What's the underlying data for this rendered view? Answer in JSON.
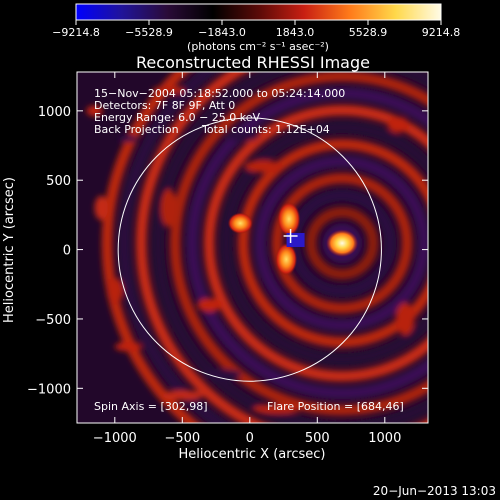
{
  "colorbar": {
    "ticks": [
      "−9214.8",
      "−5528.9",
      "−1843.0",
      "1843.0",
      "5528.9",
      "9214.8"
    ],
    "units": "(photons cm⁻² s⁻¹ asec⁻²)",
    "gradient": [
      "#0000ff",
      "#20139a",
      "#2a0b38",
      "#000000",
      "#5a0a08",
      "#c81f12",
      "#ff7a1a",
      "#ffd84a",
      "#fffbe6"
    ]
  },
  "annotations": {
    "time": "15−Nov−2004 05:18:52.000 to 05:24:14.000",
    "detectors": "Detectors: 7F 8F 9F, Att 0",
    "energy": "Energy Range: 6.0 − 25.0 keV",
    "method": "Back Projection",
    "counts": "Total counts: 1.12E+04",
    "spin_axis": "Spin Axis = [302,98]",
    "flare_position": "Flare Position = [684,46]"
  },
  "timestamp": "20−Jun−2013 13:03",
  "chart_data": {
    "type": "heatmap",
    "title": "Reconstructed RHESSI Image",
    "xlabel": "Heliocentric X (arcsec)",
    "ylabel": "Heliocentric Y (arcsec)",
    "xlim": [
      -1280,
      1320
    ],
    "ylim": [
      -1250,
      1280
    ],
    "x_ticks": [
      -1000,
      -500,
      0,
      500,
      1000
    ],
    "x_tick_labels": [
      "−1000",
      "−500",
      "0",
      "500",
      "1000"
    ],
    "y_ticks": [
      -1000,
      -500,
      0,
      500,
      1000
    ],
    "y_tick_labels": [
      "−1000",
      "−500",
      "0",
      "500",
      "1000"
    ],
    "colorbar_range": [
      -9214.8,
      9214.8
    ],
    "solar_disk": {
      "center": [
        0,
        0
      ],
      "radius": 975
    },
    "spin_axis": [
      302,
      98
    ],
    "flare_position": [
      684,
      46
    ],
    "sources": [
      {
        "x": 684,
        "y": 46,
        "value": 9214.8
      },
      {
        "x": -70,
        "y": 190,
        "value": 6000
      },
      {
        "x": 290,
        "y": 220,
        "value": 5000
      },
      {
        "x": 270,
        "y": -70,
        "value": 4500
      }
    ],
    "grid": false
  }
}
